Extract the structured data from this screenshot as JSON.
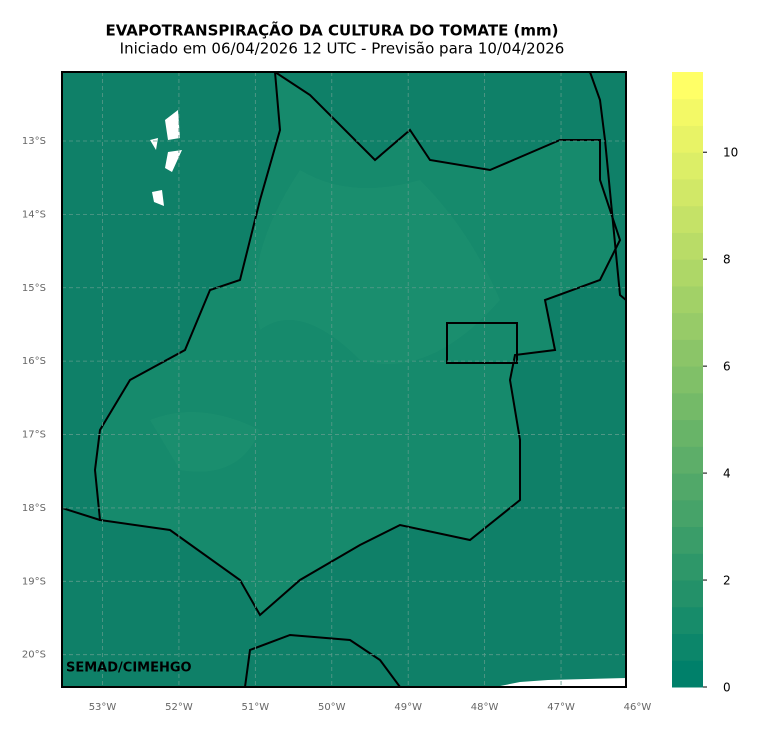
{
  "map": {
    "title": "EVAPOTRANSPIRAÇÃO DA CULTURA DO TOMATE (mm)",
    "subtitle": "Iniciado em 06/04/2026 12 UTC - Previsão para 10/04/2026",
    "credit": "SEMAD/CIMEHGO",
    "lon_range": [
      -53.53,
      -46.15
    ],
    "lat_range": [
      -12.06,
      -20.44
    ],
    "lon_ticks": [
      {
        "value": -53,
        "label": "53°W"
      },
      {
        "value": -52,
        "label": "52°W"
      },
      {
        "value": -51,
        "label": "51°W"
      },
      {
        "value": -50,
        "label": "50°W"
      },
      {
        "value": -49,
        "label": "49°W"
      },
      {
        "value": -48,
        "label": "48°W"
      },
      {
        "value": -47,
        "label": "47°W"
      },
      {
        "value": -46,
        "label": "46°W"
      }
    ],
    "lat_ticks": [
      {
        "value": -13,
        "label": "13°S"
      },
      {
        "value": -14,
        "label": "14°S"
      },
      {
        "value": -15,
        "label": "15°S"
      },
      {
        "value": -16,
        "label": "16°S"
      },
      {
        "value": -17,
        "label": "17°S"
      },
      {
        "value": -18,
        "label": "18°S"
      },
      {
        "value": -19,
        "label": "19°S"
      },
      {
        "value": -20,
        "label": "20°S"
      }
    ],
    "grid": true,
    "colorbar": {
      "range": [
        0,
        11.5
      ],
      "step": 0.5,
      "color_low": "#00806a",
      "color_high": "#ffff66",
      "ticks": [
        0,
        2,
        4,
        6,
        8,
        10
      ]
    }
  }
}
